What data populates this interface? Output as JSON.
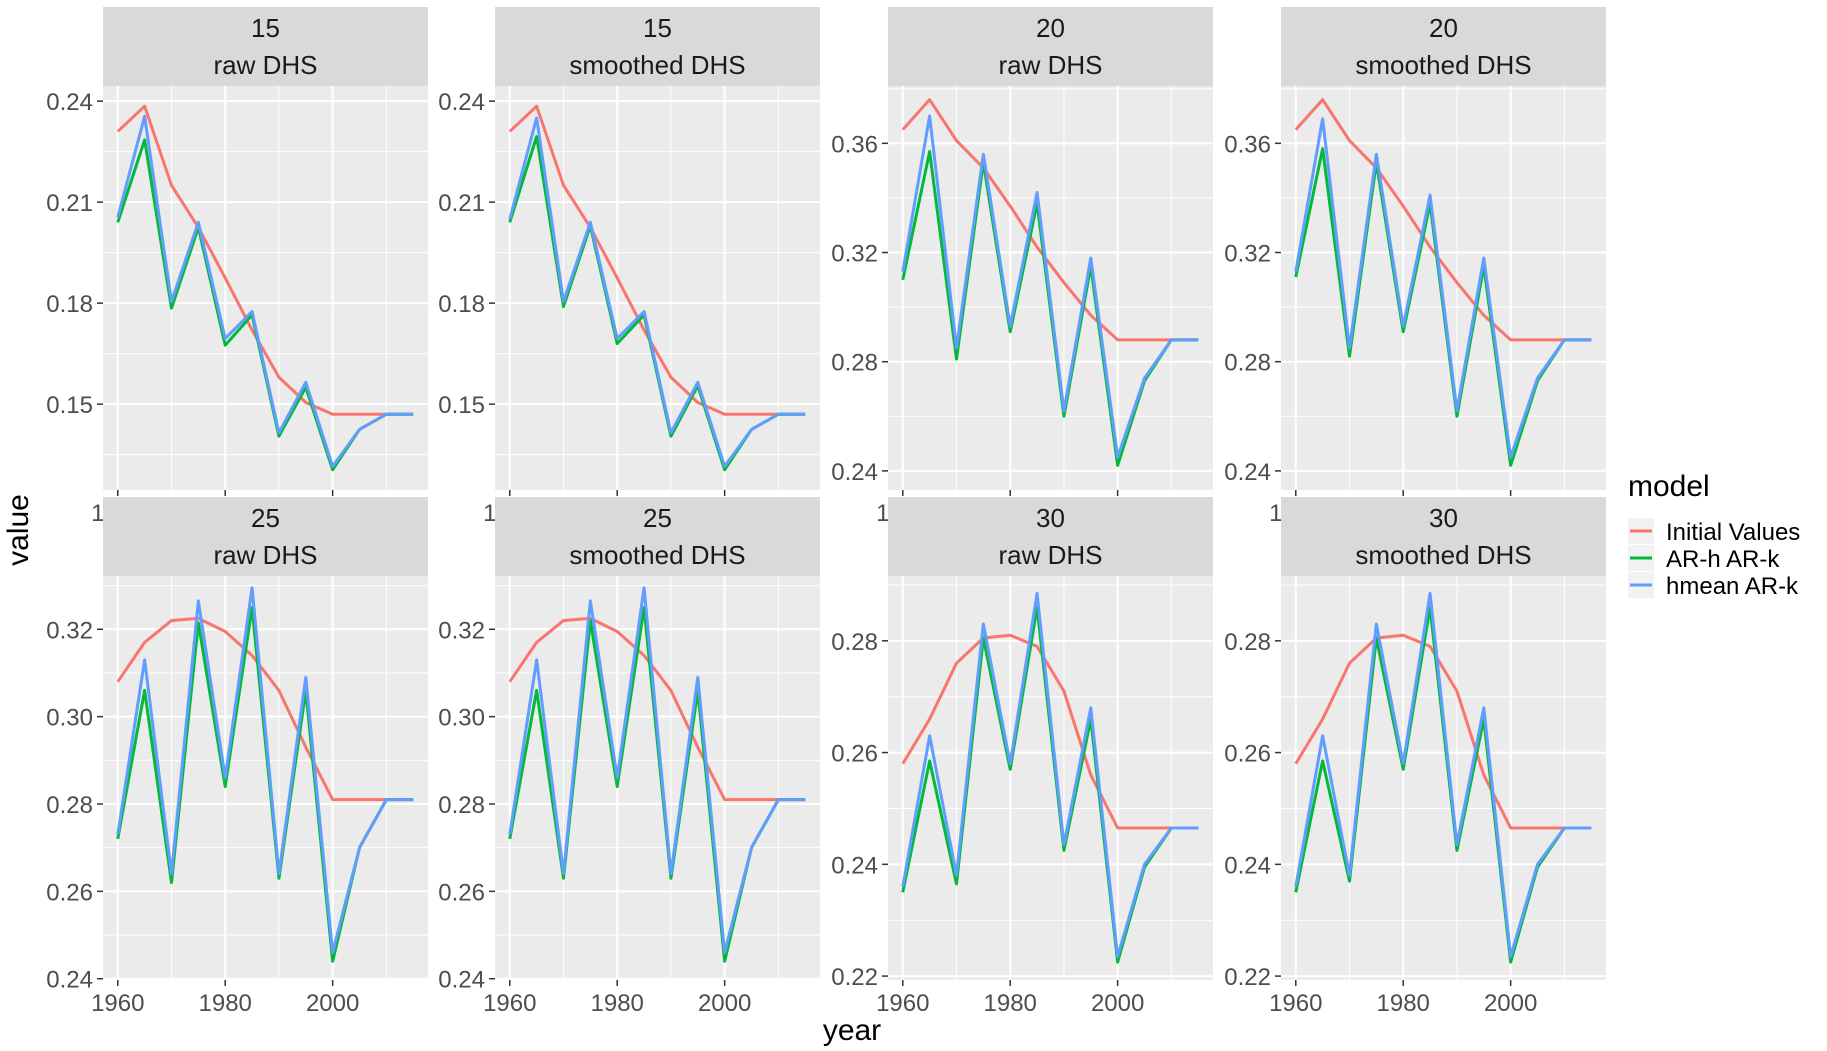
{
  "chart_data": {
    "type": "line",
    "xlabel": "year",
    "ylabel": "value",
    "x": [
      1960,
      1965,
      1970,
      1975,
      1980,
      1985,
      1990,
      1995,
      2000,
      2005,
      2010,
      2015
    ],
    "xticks": [
      1960,
      1980,
      2000
    ],
    "xlim": [
      1957.25,
      2017.75
    ],
    "legend": {
      "title": "model",
      "position": "right",
      "entries": [
        "Initial Values",
        "AR-h AR-k",
        "hmean AR-k"
      ]
    },
    "colors": {
      "Initial Values": "#F8766D",
      "AR-h AR-k": "#00BA38",
      "hmean AR-k": "#619CFF",
      "panel_bg": "#EBEBEB",
      "strip_bg": "#D9D9D9",
      "grid": "#FFFFFF"
    },
    "panels": [
      {
        "strip": [
          "15",
          "raw DHS"
        ],
        "yticks": [
          "0.15",
          "0.18",
          "0.21",
          "0.24"
        ],
        "ylim": [
          0.1245,
          0.2445
        ],
        "series": [
          {
            "name": "Initial Values",
            "values": [
              0.231,
              0.2385,
              0.215,
              0.2025,
              0.1875,
              0.172,
              0.158,
              0.1505,
              0.147,
              0.147,
              0.147,
              0.147
            ]
          },
          {
            "name": "AR-h AR-k",
            "values": [
              0.204,
              0.2285,
              0.1785,
              0.2025,
              0.1675,
              0.1765,
              0.1405,
              0.155,
              0.1305,
              0.1425,
              0.147,
              0.147
            ]
          },
          {
            "name": "hmean AR-k",
            "values": [
              0.2055,
              0.2355,
              0.1805,
              0.204,
              0.1695,
              0.1775,
              0.1415,
              0.1565,
              0.1315,
              0.1425,
              0.147,
              0.147
            ]
          }
        ]
      },
      {
        "strip": [
          "15",
          "smoothed DHS"
        ],
        "yticks": [
          "0.15",
          "0.18",
          "0.21",
          "0.24"
        ],
        "ylim": [
          0.1245,
          0.2445
        ],
        "series": [
          {
            "name": "Initial Values",
            "values": [
              0.231,
              0.2385,
              0.215,
              0.2025,
              0.1875,
              0.172,
              0.158,
              0.1505,
              0.147,
              0.147,
              0.147,
              0.147
            ]
          },
          {
            "name": "AR-h AR-k",
            "values": [
              0.204,
              0.2295,
              0.179,
              0.203,
              0.168,
              0.1765,
              0.1405,
              0.1555,
              0.1305,
              0.1425,
              0.147,
              0.147
            ]
          },
          {
            "name": "hmean AR-k",
            "values": [
              0.205,
              0.235,
              0.1805,
              0.204,
              0.1695,
              0.1775,
              0.1415,
              0.1565,
              0.1315,
              0.1425,
              0.147,
              0.147
            ]
          }
        ]
      },
      {
        "strip": [
          "20",
          "raw DHS"
        ],
        "yticks": [
          "0.24",
          "0.28",
          "0.32",
          "0.36"
        ],
        "ylim": [
          0.233,
          0.381
        ],
        "series": [
          {
            "name": "Initial Values",
            "values": [
              0.365,
              0.376,
              0.361,
              0.351,
              0.337,
              0.322,
              0.309,
              0.297,
              0.288,
              0.288,
              0.288,
              0.288
            ]
          },
          {
            "name": "AR-h AR-k",
            "values": [
              0.31,
              0.357,
              0.281,
              0.353,
              0.291,
              0.338,
              0.26,
              0.315,
              0.242,
              0.273,
              0.288,
              0.288
            ]
          },
          {
            "name": "hmean AR-k",
            "values": [
              0.313,
              0.37,
              0.285,
              0.356,
              0.293,
              0.342,
              0.262,
              0.318,
              0.245,
              0.274,
              0.288,
              0.288
            ]
          }
        ]
      },
      {
        "strip": [
          "20",
          "smoothed DHS"
        ],
        "yticks": [
          "0.24",
          "0.28",
          "0.32",
          "0.36"
        ],
        "ylim": [
          0.233,
          0.381
        ],
        "series": [
          {
            "name": "Initial Values",
            "values": [
              0.365,
              0.376,
              0.361,
              0.351,
              0.337,
              0.322,
              0.309,
              0.297,
              0.288,
              0.288,
              0.288,
              0.288
            ]
          },
          {
            "name": "AR-h AR-k",
            "values": [
              0.311,
              0.358,
              0.282,
              0.353,
              0.291,
              0.338,
              0.26,
              0.315,
              0.242,
              0.273,
              0.288,
              0.288
            ]
          },
          {
            "name": "hmean AR-k",
            "values": [
              0.313,
              0.369,
              0.285,
              0.356,
              0.293,
              0.341,
              0.262,
              0.318,
              0.245,
              0.274,
              0.288,
              0.288
            ]
          }
        ]
      },
      {
        "strip": [
          "25",
          "raw DHS"
        ],
        "yticks": [
          "0.24",
          "0.26",
          "0.28",
          "0.30",
          "0.32"
        ],
        "ylim": [
          0.2397,
          0.3322
        ],
        "series": [
          {
            "name": "Initial Values",
            "values": [
              0.308,
              0.317,
              0.322,
              0.3225,
              0.3195,
              0.314,
              0.306,
              0.293,
              0.281,
              0.281,
              0.281,
              0.281
            ]
          },
          {
            "name": "AR-h AR-k",
            "values": [
              0.272,
              0.306,
              0.262,
              0.3215,
              0.284,
              0.325,
              0.263,
              0.306,
              0.244,
              0.27,
              0.281,
              0.281
            ]
          },
          {
            "name": "hmean AR-k",
            "values": [
              0.273,
              0.313,
              0.264,
              0.3265,
              0.286,
              0.3295,
              0.264,
              0.309,
              0.246,
              0.27,
              0.281,
              0.281
            ]
          }
        ]
      },
      {
        "strip": [
          "25",
          "smoothed DHS"
        ],
        "yticks": [
          "0.24",
          "0.26",
          "0.28",
          "0.30",
          "0.32"
        ],
        "ylim": [
          0.2397,
          0.3322
        ],
        "series": [
          {
            "name": "Initial Values",
            "values": [
              0.308,
              0.317,
              0.322,
              0.3225,
              0.3195,
              0.314,
              0.306,
              0.293,
              0.281,
              0.281,
              0.281,
              0.281
            ]
          },
          {
            "name": "AR-h AR-k",
            "values": [
              0.272,
              0.306,
              0.263,
              0.322,
              0.284,
              0.325,
              0.263,
              0.306,
              0.244,
              0.27,
              0.281,
              0.281
            ]
          },
          {
            "name": "hmean AR-k",
            "values": [
              0.273,
              0.313,
              0.264,
              0.3265,
              0.286,
              0.3295,
              0.264,
              0.309,
              0.246,
              0.27,
              0.281,
              0.281
            ]
          }
        ]
      },
      {
        "strip": [
          "30",
          "raw DHS"
        ],
        "yticks": [
          "0.22",
          "0.24",
          "0.26",
          "0.28"
        ],
        "ylim": [
          0.2193,
          0.2916
        ],
        "series": [
          {
            "name": "Initial Values",
            "values": [
              0.258,
              0.266,
              0.276,
              0.2805,
              0.281,
              0.279,
              0.271,
              0.256,
              0.2465,
              0.2465,
              0.2465,
              0.2465
            ]
          },
          {
            "name": "AR-h AR-k",
            "values": [
              0.235,
              0.2585,
              0.2365,
              0.2805,
              0.257,
              0.286,
              0.2425,
              0.266,
              0.2225,
              0.2395,
              0.2465,
              0.2465
            ]
          },
          {
            "name": "hmean AR-k",
            "values": [
              0.236,
              0.263,
              0.238,
              0.283,
              0.258,
              0.2885,
              0.2435,
              0.268,
              0.2235,
              0.24,
              0.2465,
              0.2465
            ]
          }
        ]
      },
      {
        "strip": [
          "30",
          "smoothed DHS"
        ],
        "yticks": [
          "0.22",
          "0.24",
          "0.26",
          "0.28"
        ],
        "ylim": [
          0.2193,
          0.2916
        ],
        "series": [
          {
            "name": "Initial Values",
            "values": [
              0.258,
              0.266,
              0.276,
              0.2805,
              0.281,
              0.279,
              0.271,
              0.256,
              0.2465,
              0.2465,
              0.2465,
              0.2465
            ]
          },
          {
            "name": "AR-h AR-k",
            "values": [
              0.235,
              0.2585,
              0.237,
              0.2805,
              0.257,
              0.286,
              0.2425,
              0.266,
              0.2225,
              0.2395,
              0.2465,
              0.2465
            ]
          },
          {
            "name": "hmean AR-k",
            "values": [
              0.236,
              0.263,
              0.238,
              0.283,
              0.258,
              0.2885,
              0.2435,
              0.268,
              0.2235,
              0.24,
              0.2465,
              0.2465
            ]
          }
        ]
      }
    ]
  }
}
